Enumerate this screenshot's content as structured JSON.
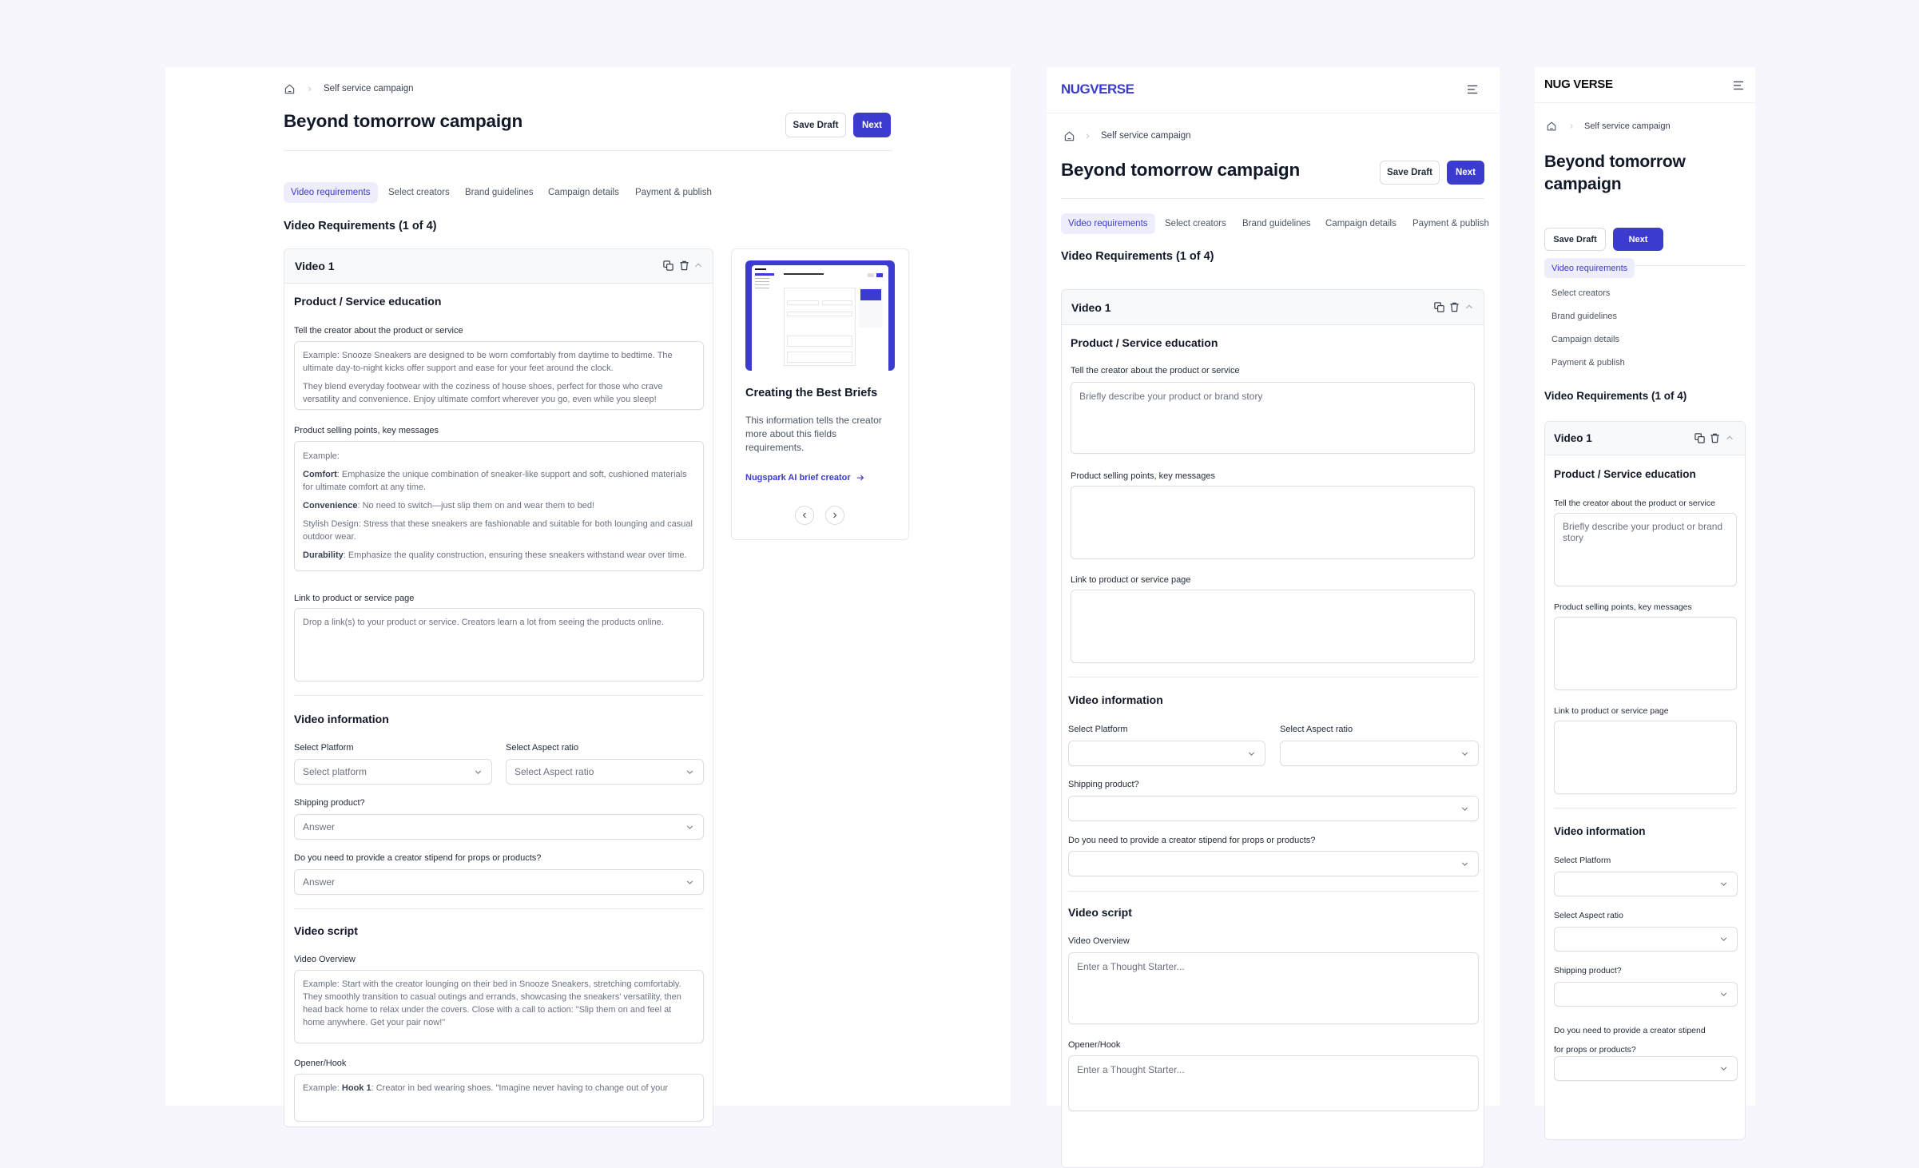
{
  "common": {
    "breadcrumb": "Self service campaign",
    "title": "Beyond tomorrow campaign",
    "save_draft": "Save Draft",
    "next": "Next",
    "tabs": [
      "Video requirements",
      "Select creators",
      "Brand guidelines",
      "Campaign details",
      "Payment & publish"
    ],
    "requirements_heading": "Video Requirements (1 of 4)",
    "video_title": "Video 1",
    "section_product": "Product / Service education",
    "label_tell": "Tell the creator about the product or service",
    "label_selling": "Product selling points, key messages",
    "label_link": "Link to product or service page",
    "section_video_info": "Video information",
    "label_platform": "Select Platform",
    "label_aspect": "Select Aspect ratio",
    "label_shipping": "Shipping product?",
    "label_stipend": "Do you need to provide a creator stipend for props or products?",
    "label_stipend_line1": "Do you need to provide a creator stipend",
    "label_stipend_line2": "for props or products?",
    "section_script": "Video script",
    "label_overview": "Video Overview",
    "label_opener": "Opener/Hook"
  },
  "desktop": {
    "tell_text": [
      "Example: Snooze Sneakers are  designed to be worn comfortably from daytime to bedtime. The ultimate day-to-night kicks offer support and ease for your feet around the clock.",
      "They blend everyday footwear with the coziness of house shoes, perfect for those who crave versatility and convenience. Enjoy ultimate comfort wherever you go, even while you sleep!"
    ],
    "selling_points": [
      {
        "bold": "",
        "text": "Example:"
      },
      {
        "bold": "Comfort",
        "text": ": Emphasize the unique combination of sneaker-like support and soft, cushioned materials for ultimate comfort at any time."
      },
      {
        "bold": "Convenience",
        "text": ": No need to switch—just slip them on and wear them to bed!"
      },
      {
        "bold": "",
        "text": "Stylish Design: Stress that these sneakers are fashionable and suitable for both lounging and casual outdoor wear."
      },
      {
        "bold": "Durability",
        "text": ": Emphasize the quality construction, ensuring these sneakers withstand wear over time."
      }
    ],
    "link_placeholder": "Drop a link(s) to your product or service. Creators learn a lot from seeing the products online.",
    "platform_placeholder": "Select platform",
    "aspect_placeholder": "Select Aspect ratio",
    "answer_placeholder": "Answer",
    "overview_text": "Example: Start with the creator lounging on their bed in Snooze Sneakers, stretching comfortably. They smoothly transition to casual outings and errands, showcasing the sneakers' versatility, then head back home to relax under the covers. Close with a call to action: \"Slip them on and feel at home anywhere. Get your pair now!\"",
    "opener_prefix": "Example: ",
    "opener_bold": "Hook 1",
    "opener_text": ": Creator in bed wearing shoes. \"Imagine never having to change out of your",
    "help_card": {
      "title": "Creating the Best Briefs",
      "description": "This information tells the creator more about this fields requirements.",
      "link": "Nugspark AI brief creator"
    }
  },
  "tablet": {
    "logo": "NUGVERSE",
    "tell_placeholder": "Briefly describe your product or brand story",
    "thought_placeholder": "Enter a Thought Starter..."
  },
  "mobile": {
    "logo": "NUG VERSE",
    "tell_placeholder": "Briefly describe your product or brand story"
  },
  "colors": {
    "accent": "#3b3bcf",
    "active_tab_bg": "#ededfc",
    "page_bg": "#f7f6fd"
  }
}
